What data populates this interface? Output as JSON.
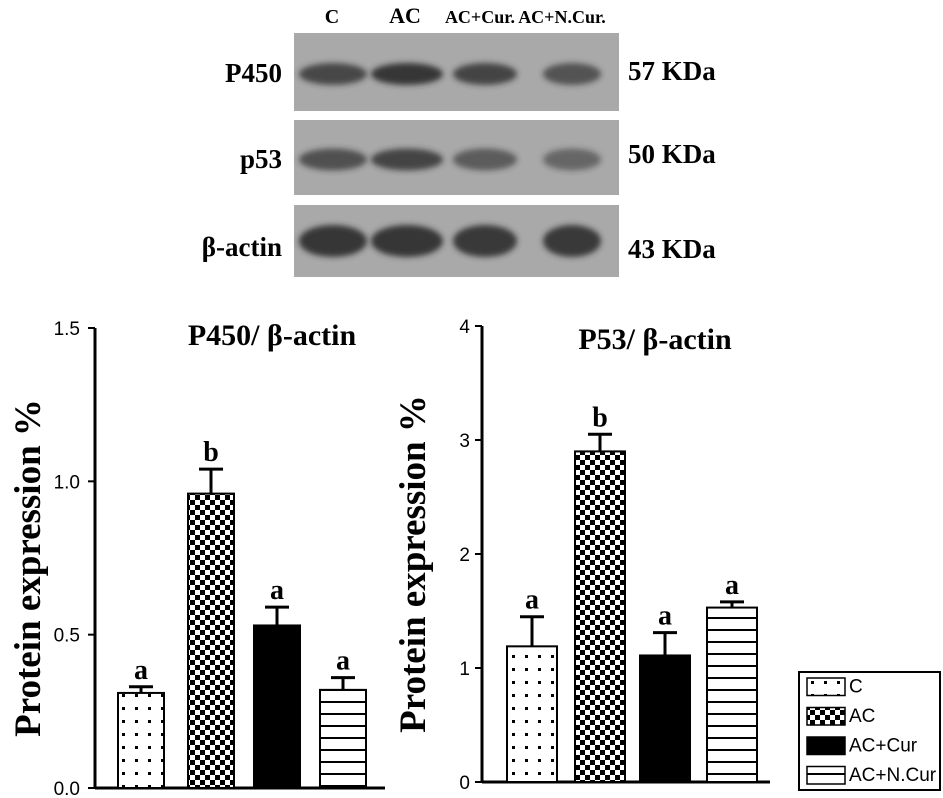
{
  "western_blot": {
    "lanes": [
      "C",
      "AC",
      "AC+Cur.",
      "AC+N.Cur."
    ],
    "rows": [
      {
        "protein": "P450",
        "size": "57 KDa",
        "intensity": [
          0.78,
          0.92,
          0.8,
          0.7
        ]
      },
      {
        "protein": "p53",
        "size": "50 KDa",
        "intensity": [
          0.72,
          0.8,
          0.62,
          0.52
        ]
      },
      {
        "protein": "β-actin",
        "size": "43 KDa",
        "intensity": [
          0.92,
          0.92,
          0.9,
          0.9
        ]
      }
    ],
    "colors": {
      "membrane": "#a9a9a9",
      "band": "#2c2c2c"
    }
  },
  "chart_data": [
    {
      "type": "bar",
      "title": "P450/ β-actin",
      "ylabel": "Protein expression %",
      "xlabel": "",
      "categories": [
        "C",
        "AC",
        "AC+Cur",
        "AC+N.Cur"
      ],
      "values": [
        0.31,
        0.96,
        0.53,
        0.32
      ],
      "errors": [
        0.02,
        0.08,
        0.06,
        0.04
      ],
      "annotations": [
        "a",
        "b",
        "a",
        "a"
      ],
      "ylim": [
        0.0,
        1.5
      ],
      "yticks": [
        "0.0",
        "0.5",
        "1.0",
        "1.5"
      ],
      "ytick_values": [
        0.0,
        0.5,
        1.0,
        1.5
      ],
      "grid": false
    },
    {
      "type": "bar",
      "title": "P53/ β-actin",
      "ylabel": "Protein expression %",
      "xlabel": "",
      "categories": [
        "C",
        "AC",
        "AC+Cur",
        "AC+N.Cur"
      ],
      "values": [
        1.19,
        2.9,
        1.11,
        1.53
      ],
      "errors": [
        0.26,
        0.15,
        0.2,
        0.05
      ],
      "annotations": [
        "a",
        "b",
        "a",
        "a"
      ],
      "ylim": [
        0,
        4
      ],
      "yticks": [
        "0",
        "1",
        "2",
        "3",
        "4"
      ],
      "ytick_values": [
        0,
        1,
        2,
        3,
        4
      ],
      "grid": false
    }
  ],
  "legend": {
    "placement": "bottom-right",
    "entries": [
      {
        "label": "C",
        "pattern": "dots"
      },
      {
        "label": "AC",
        "pattern": "checker"
      },
      {
        "label": "AC+Cur",
        "pattern": "solid"
      },
      {
        "label": "AC+N.Cur",
        "pattern": "hlines"
      }
    ]
  }
}
